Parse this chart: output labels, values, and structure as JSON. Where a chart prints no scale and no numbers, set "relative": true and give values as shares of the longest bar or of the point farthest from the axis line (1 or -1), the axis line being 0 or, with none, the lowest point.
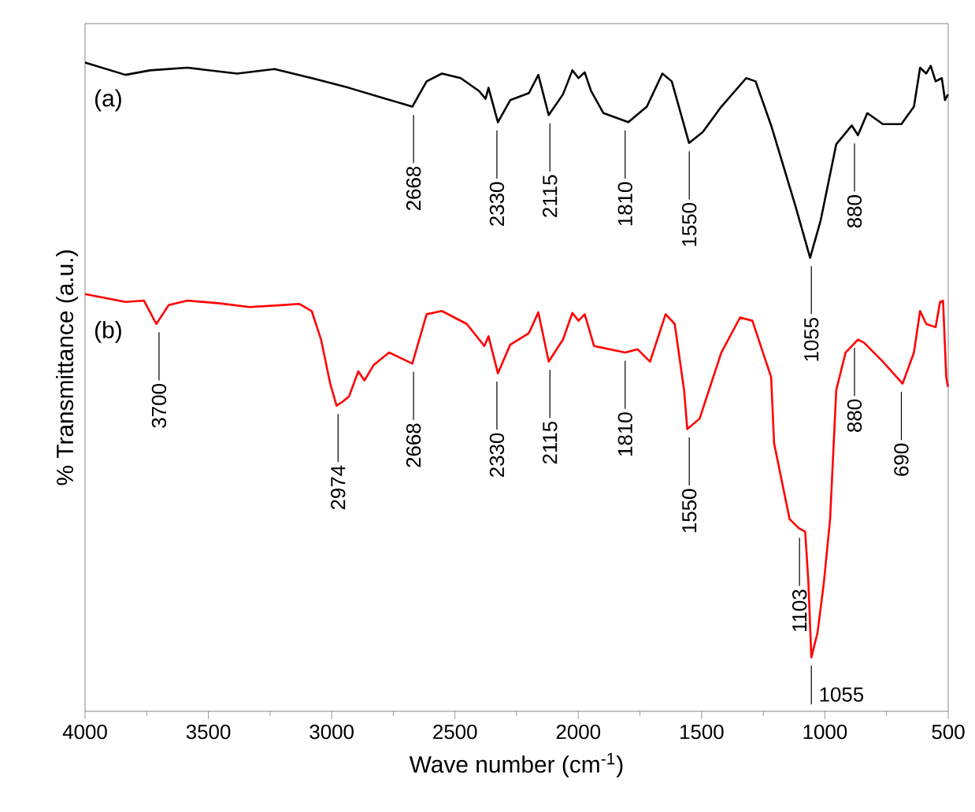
{
  "chart_data": {
    "type": "line",
    "relative": true,
    "xlabel": "Wave number (cm$^{-1}$)",
    "ylabel": "% Transmittance (a.u.)",
    "xlim": [
      4000,
      500
    ],
    "xticks": [
      4000,
      3500,
      3000,
      2500,
      2000,
      1500,
      1000,
      500
    ],
    "series": [
      {
        "name": "(a)",
        "color": "#000000",
        "x": [
          4000,
          3836,
          3736,
          3585,
          3383,
          3232,
          3081,
          2930,
          2779,
          2673,
          2615,
          2553,
          2477,
          2402,
          2376,
          2364,
          2326,
          2276,
          2200,
          2162,
          2120,
          2062,
          2024,
          1999,
          1974,
          1948,
          1898,
          1797,
          1722,
          1659,
          1621,
          1551,
          1495,
          1420,
          1319,
          1281,
          1218,
          1118,
          1060,
          1017,
          954,
          891,
          866,
          828,
          765,
          690,
          639,
          614,
          589,
          571,
          551,
          526,
          513,
          501
        ],
        "values": [
          1.0,
          0.981,
          0.988,
          0.992,
          0.983,
          0.99,
          0.976,
          0.961,
          0.944,
          0.932,
          0.971,
          0.983,
          0.976,
          0.956,
          0.944,
          0.961,
          0.908,
          0.942,
          0.953,
          0.981,
          0.919,
          0.951,
          0.988,
          0.976,
          0.985,
          0.956,
          0.922,
          0.908,
          0.932,
          0.983,
          0.971,
          0.876,
          0.893,
          0.932,
          0.976,
          0.971,
          0.903,
          0.777,
          0.699,
          0.757,
          0.874,
          0.903,
          0.888,
          0.922,
          0.905,
          0.905,
          0.932,
          0.992,
          0.983,
          0.995,
          0.971,
          0.976,
          0.942,
          0.951
        ]
      },
      {
        "name": "(b)",
        "color": "#ff0000",
        "x": [
          4000,
          3836,
          3761,
          3711,
          3661,
          3585,
          3459,
          3333,
          3207,
          3132,
          3081,
          3043,
          3006,
          2980,
          2960,
          2930,
          2892,
          2867,
          2829,
          2767,
          2673,
          2615,
          2553,
          2452,
          2381,
          2364,
          2326,
          2276,
          2200,
          2162,
          2120,
          2062,
          2024,
          1999,
          1974,
          1936,
          1810,
          1760,
          1709,
          1646,
          1609,
          1571,
          1558,
          1508,
          1420,
          1344,
          1294,
          1218,
          1206,
          1143,
          1105,
          1080,
          1067,
          1055,
          1030,
          1004,
          979,
          954,
          916,
          866,
          841,
          765,
          685,
          639,
          614,
          589,
          551,
          533,
          521,
          508,
          501
        ],
        "values": [
          0.643,
          0.631,
          0.633,
          0.597,
          0.626,
          0.633,
          0.629,
          0.623,
          0.626,
          0.628,
          0.617,
          0.573,
          0.505,
          0.471,
          0.476,
          0.485,
          0.524,
          0.51,
          0.534,
          0.553,
          0.536,
          0.612,
          0.617,
          0.597,
          0.563,
          0.578,
          0.521,
          0.565,
          0.583,
          0.615,
          0.539,
          0.573,
          0.614,
          0.602,
          0.612,
          0.563,
          0.553,
          0.558,
          0.539,
          0.612,
          0.597,
          0.495,
          0.435,
          0.451,
          0.553,
          0.607,
          0.602,
          0.515,
          0.413,
          0.296,
          0.282,
          0.277,
          0.199,
          0.083,
          0.121,
          0.199,
          0.296,
          0.495,
          0.553,
          0.573,
          0.568,
          0.539,
          0.505,
          0.553,
          0.617,
          0.597,
          0.592,
          0.631,
          0.633,
          0.515,
          0.5
        ]
      }
    ],
    "annotations": [
      {
        "text": "2668",
        "x": 2668,
        "y": 0.932
      },
      {
        "text": "2330",
        "x": 2330,
        "y": 0.908
      },
      {
        "text": "2115",
        "x": 2115,
        "y": 0.919
      },
      {
        "text": "1810",
        "x": 1810,
        "y": 0.908
      },
      {
        "text": "1550",
        "x": 1550,
        "y": 0.876
      },
      {
        "text": "1055",
        "x": 1055,
        "y": 0.699
      },
      {
        "text": "880",
        "x": 880,
        "y": 0.888
      },
      {
        "text": "3700",
        "x": 3700,
        "y": 0.597
      },
      {
        "text": "2974",
        "x": 2974,
        "y": 0.471
      },
      {
        "text": "2668",
        "x": 2668,
        "y": 0.536
      },
      {
        "text": "2330",
        "x": 2330,
        "y": 0.521
      },
      {
        "text": "2115",
        "x": 2115,
        "y": 0.539
      },
      {
        "text": "1810",
        "x": 1810,
        "y": 0.553
      },
      {
        "text": "1550",
        "x": 1550,
        "y": 0.435
      },
      {
        "text": "1103",
        "x": 1103,
        "y": 0.28
      },
      {
        "text": "1055",
        "x": 1055,
        "y": 0.083
      },
      {
        "text": "880",
        "x": 880,
        "y": 0.573
      },
      {
        "text": "690",
        "x": 690,
        "y": 0.505
      }
    ]
  }
}
